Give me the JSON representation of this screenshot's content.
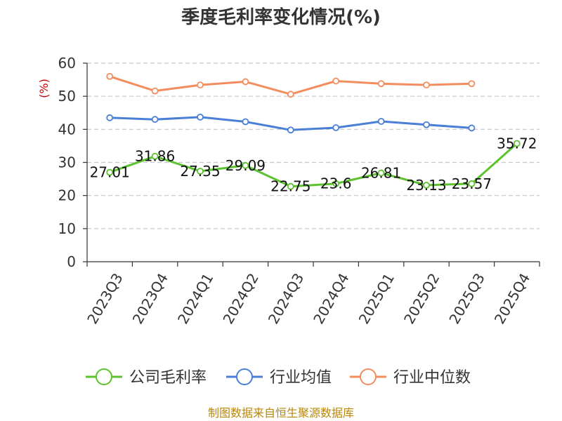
{
  "chart_data": {
    "type": "line",
    "title": "季度毛利率变化情况(%)",
    "ylabel": "(%)",
    "categories": [
      "2023Q3",
      "2023Q4",
      "2024Q1",
      "2024Q2",
      "2024Q3",
      "2024Q4",
      "2025Q1",
      "2025Q2",
      "2025Q3",
      "2025Q4"
    ],
    "ylim": [
      0,
      60
    ],
    "yticks": [
      0,
      10,
      20,
      30,
      40,
      50,
      60
    ],
    "grid": true,
    "legend_position": "bottom",
    "series": [
      {
        "name": "公司毛利率",
        "color": "#5cc22d",
        "values": [
          27.01,
          31.86,
          27.35,
          29.09,
          22.75,
          23.6,
          26.81,
          23.13,
          23.57,
          35.72
        ],
        "labels": [
          "27.01",
          "31.86",
          "27.35",
          "29.09",
          "22.75",
          "23.6",
          "26.81",
          "23.13",
          "23.57",
          "35.72"
        ]
      },
      {
        "name": "行业均值",
        "color": "#4a7fd8",
        "values": [
          43.5,
          43.0,
          43.7,
          42.3,
          39.8,
          40.5,
          42.4,
          41.4,
          40.4,
          null
        ]
      },
      {
        "name": "行业中位数",
        "color": "#f38d5d",
        "values": [
          56.0,
          51.6,
          53.4,
          54.4,
          50.6,
          54.6,
          53.8,
          53.4,
          53.8,
          null
        ]
      }
    ]
  },
  "source": "制图数据来自恒生聚源数据库"
}
